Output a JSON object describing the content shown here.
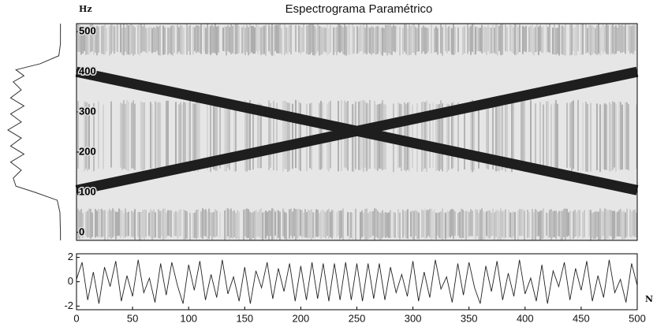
{
  "chart_data": {
    "type": "spectrogram",
    "title": "Espectrograma Paramétrico",
    "y_label": "Hz",
    "xlim": [
      0,
      500
    ],
    "ylim": [
      -20,
      520
    ],
    "yticks": [
      0,
      100,
      200,
      300,
      400,
      500
    ],
    "chirps": [
      {
        "x": [
          0,
          500
        ],
        "values": [
          105,
          400
        ]
      },
      {
        "x": [
          0,
          500
        ],
        "values": [
          400,
          105
        ]
      }
    ],
    "chirp_color": "#1e1e1e",
    "signal": {
      "type": "line",
      "x_label": "N",
      "color": "#222222",
      "xlim": [
        0,
        500
      ],
      "xticks": [
        0,
        50,
        100,
        150,
        200,
        250,
        300,
        350,
        400,
        450,
        500
      ],
      "ylim": [
        -2.3,
        2.3
      ],
      "yticks": [
        -2,
        0,
        2
      ],
      "x": [
        0,
        5,
        10,
        15,
        20,
        25,
        30,
        35,
        40,
        45,
        50,
        55,
        60,
        65,
        70,
        75,
        80,
        85,
        90,
        95,
        100,
        105,
        110,
        115,
        120,
        125,
        130,
        135,
        140,
        145,
        150,
        155,
        160,
        165,
        170,
        175,
        180,
        185,
        190,
        195,
        200,
        205,
        210,
        215,
        220,
        225,
        230,
        235,
        240,
        245,
        250,
        255,
        260,
        265,
        270,
        275,
        280,
        285,
        290,
        295,
        300,
        305,
        310,
        315,
        320,
        325,
        330,
        335,
        340,
        345,
        350,
        355,
        360,
        365,
        370,
        375,
        380,
        385,
        390,
        395,
        400,
        405,
        410,
        415,
        420,
        425,
        430,
        435,
        440,
        445,
        450,
        455,
        460,
        465,
        470,
        475,
        480,
        485,
        490,
        495,
        500
      ],
      "values": [
        0.2,
        1.6,
        -1.5,
        0.8,
        -1.8,
        1.2,
        -0.4,
        1.7,
        -1.6,
        0.5,
        -1.2,
        1.8,
        -0.9,
        0.3,
        -1.7,
        1.5,
        -1.1,
        1.6,
        -0.3,
        -1.8,
        1.4,
        -0.7,
        1.7,
        -1.5,
        0.6,
        -1.3,
        1.8,
        -1.0,
        0.4,
        -1.6,
        1.2,
        -1.8,
        0.9,
        -0.5,
        1.6,
        -1.4,
        1.1,
        -0.8,
        1.5,
        -1.6,
        1.3,
        -1.5,
        1.6,
        -1.4,
        1.5,
        -1.6,
        1.5,
        -1.5,
        1.6,
        -1.5,
        1.5,
        -1.6,
        1.5,
        -1.4,
        1.5,
        -1.5,
        1.2,
        -0.9,
        0.6,
        -1.2,
        1.7,
        -1.6,
        0.8,
        -1.3,
        1.8,
        -0.6,
        0.4,
        -1.7,
        1.5,
        -1.1,
        1.6,
        -0.5,
        -1.8,
        1.3,
        -0.8,
        1.7,
        -1.5,
        0.7,
        -1.2,
        1.8,
        -1.0,
        0.3,
        -1.6,
        1.4,
        -1.8,
        0.9,
        -0.4,
        1.6,
        -1.5,
        1.1,
        -0.7,
        1.7,
        -1.6,
        0.5,
        -1.3,
        1.8,
        -0.9,
        0.2,
        -1.7,
        1.5,
        -0.3
      ]
    },
    "marginal": {
      "type": "line",
      "color": "#333333",
      "y": [
        520,
        470,
        440,
        420,
        405,
        390,
        375,
        355,
        335,
        315,
        295,
        275,
        255,
        235,
        215,
        195,
        175,
        155,
        135,
        115,
        100,
        80,
        50,
        0,
        -20
      ],
      "values": [
        0.02,
        0.02,
        0.05,
        0.4,
        0.85,
        0.7,
        0.9,
        0.75,
        0.95,
        0.7,
        0.95,
        0.75,
        1.0,
        0.75,
        0.95,
        0.7,
        0.95,
        0.75,
        0.9,
        0.85,
        0.5,
        0.08,
        0.03,
        0.02,
        0.02
      ]
    }
  }
}
